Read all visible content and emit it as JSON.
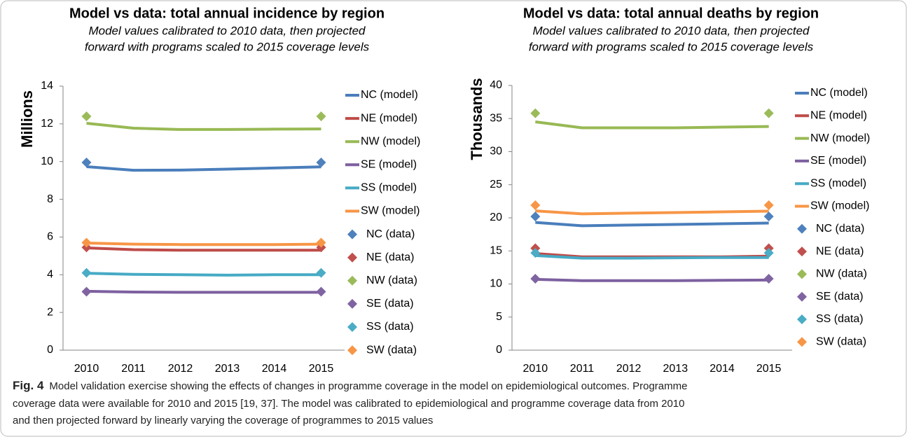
{
  "chart_data": [
    {
      "type": "line",
      "title": "Model vs data: total annual incidence by region",
      "subtitle": [
        "Model values calibrated to 2010 data, then projected",
        "forward with programs scaled to 2015 coverage levels"
      ],
      "y_label": "Millions",
      "categories": [
        "2010",
        "2011",
        "2012",
        "2013",
        "2014",
        "2015"
      ],
      "ylim": [
        0,
        14
      ],
      "yticks": [
        0,
        2,
        4,
        6,
        8,
        10,
        12,
        14
      ],
      "grid": false,
      "legend": "right",
      "series": [
        {
          "name": "NC (model)",
          "mode": "line",
          "color": "#4a7ebb",
          "values": [
            9.73,
            9.54,
            9.55,
            9.6,
            9.66,
            9.72
          ]
        },
        {
          "name": "NE (model)",
          "mode": "line",
          "color": "#be4b48",
          "values": [
            5.42,
            5.33,
            5.3,
            5.3,
            5.3,
            5.3
          ]
        },
        {
          "name": "NW (model)",
          "mode": "line",
          "color": "#98b954",
          "values": [
            12.03,
            11.77,
            11.7,
            11.7,
            11.72,
            11.73
          ]
        },
        {
          "name": "SE (model)",
          "mode": "line",
          "color": "#7d60a0",
          "values": [
            3.12,
            3.08,
            3.07,
            3.07,
            3.07,
            3.07
          ]
        },
        {
          "name": "SS (model)",
          "mode": "line",
          "color": "#46aac5",
          "values": [
            4.08,
            4.02,
            4.0,
            3.98,
            4.0,
            4.0
          ]
        },
        {
          "name": "SW (model)",
          "mode": "line",
          "color": "#f79646",
          "values": [
            5.68,
            5.62,
            5.6,
            5.6,
            5.6,
            5.62
          ]
        },
        {
          "name": "NC (data)",
          "mode": "marker",
          "color": "#4f81bd",
          "values": [
            9.95,
            null,
            null,
            null,
            null,
            9.95
          ]
        },
        {
          "name": "NE (data)",
          "mode": "marker",
          "color": "#c0504d",
          "values": [
            5.45,
            null,
            null,
            null,
            null,
            5.45
          ]
        },
        {
          "name": "NW (data)",
          "mode": "marker",
          "color": "#9bbb59",
          "values": [
            12.4,
            null,
            null,
            null,
            null,
            12.4
          ]
        },
        {
          "name": "SE (data)",
          "mode": "marker",
          "color": "#8064a2",
          "values": [
            3.1,
            null,
            null,
            null,
            null,
            3.1
          ]
        },
        {
          "name": "SS (data)",
          "mode": "marker",
          "color": "#4bacc6",
          "values": [
            4.1,
            null,
            null,
            null,
            null,
            4.1
          ]
        },
        {
          "name": "SW (data)",
          "mode": "marker",
          "color": "#f79646",
          "values": [
            5.7,
            null,
            null,
            null,
            null,
            5.7
          ]
        }
      ]
    },
    {
      "type": "line",
      "title": "Model vs data: total annual deaths by region",
      "subtitle": [
        "Model values calibrated to 2010 data, then projected",
        "forward with programs scaled to 2015 coverage levels"
      ],
      "y_label": "Thousands",
      "categories": [
        "2010",
        "2011",
        "2012",
        "2013",
        "2014",
        "2015"
      ],
      "ylim": [
        0,
        40
      ],
      "yticks": [
        0,
        5,
        10,
        15,
        20,
        25,
        30,
        35,
        40
      ],
      "grid": false,
      "legend": "right",
      "series": [
        {
          "name": "NC (model)",
          "mode": "line",
          "color": "#4a7ebb",
          "values": [
            19.3,
            18.8,
            18.9,
            19.0,
            19.1,
            19.2
          ]
        },
        {
          "name": "NE (model)",
          "mode": "line",
          "color": "#be4b48",
          "values": [
            14.6,
            14.1,
            14.1,
            14.1,
            14.1,
            14.2
          ]
        },
        {
          "name": "NW (model)",
          "mode": "line",
          "color": "#98b954",
          "values": [
            34.5,
            33.6,
            33.6,
            33.6,
            33.7,
            33.8
          ]
        },
        {
          "name": "SE (model)",
          "mode": "line",
          "color": "#7d60a0",
          "values": [
            10.7,
            10.5,
            10.5,
            10.5,
            10.55,
            10.6
          ]
        },
        {
          "name": "SS (model)",
          "mode": "line",
          "color": "#46aac5",
          "values": [
            14.3,
            13.9,
            13.9,
            13.95,
            14.0,
            14.0
          ]
        },
        {
          "name": "SW (model)",
          "mode": "line",
          "color": "#f79646",
          "values": [
            21.05,
            20.6,
            20.7,
            20.8,
            20.9,
            21.0
          ]
        },
        {
          "name": "NC (data)",
          "mode": "marker",
          "color": "#4f81bd",
          "values": [
            20.2,
            null,
            null,
            null,
            null,
            20.2
          ]
        },
        {
          "name": "NE (data)",
          "mode": "marker",
          "color": "#c0504d",
          "values": [
            15.4,
            null,
            null,
            null,
            null,
            15.4
          ]
        },
        {
          "name": "NW (data)",
          "mode": "marker",
          "color": "#9bbb59",
          "values": [
            35.8,
            null,
            null,
            null,
            null,
            35.8
          ]
        },
        {
          "name": "SE (data)",
          "mode": "marker",
          "color": "#8064a2",
          "values": [
            10.8,
            null,
            null,
            null,
            null,
            10.8
          ]
        },
        {
          "name": "SS (data)",
          "mode": "marker",
          "color": "#4bacc6",
          "values": [
            14.7,
            null,
            null,
            null,
            null,
            14.7
          ]
        },
        {
          "name": "SW (data)",
          "mode": "marker",
          "color": "#f79646",
          "values": [
            21.9,
            null,
            null,
            null,
            null,
            21.9
          ]
        }
      ]
    }
  ],
  "caption": {
    "label": "Fig. 4",
    "lines": [
      "Model validation exercise showing the effects of changes in programme coverage in the model on epidemiological outcomes. Programme",
      "coverage data were available for 2010 and 2015 [19, 37]. The model was calibrated to epidemiological and programme coverage data from 2010",
      "and then projected forward by linearly varying the coverage of programmes to 2015 values"
    ]
  }
}
